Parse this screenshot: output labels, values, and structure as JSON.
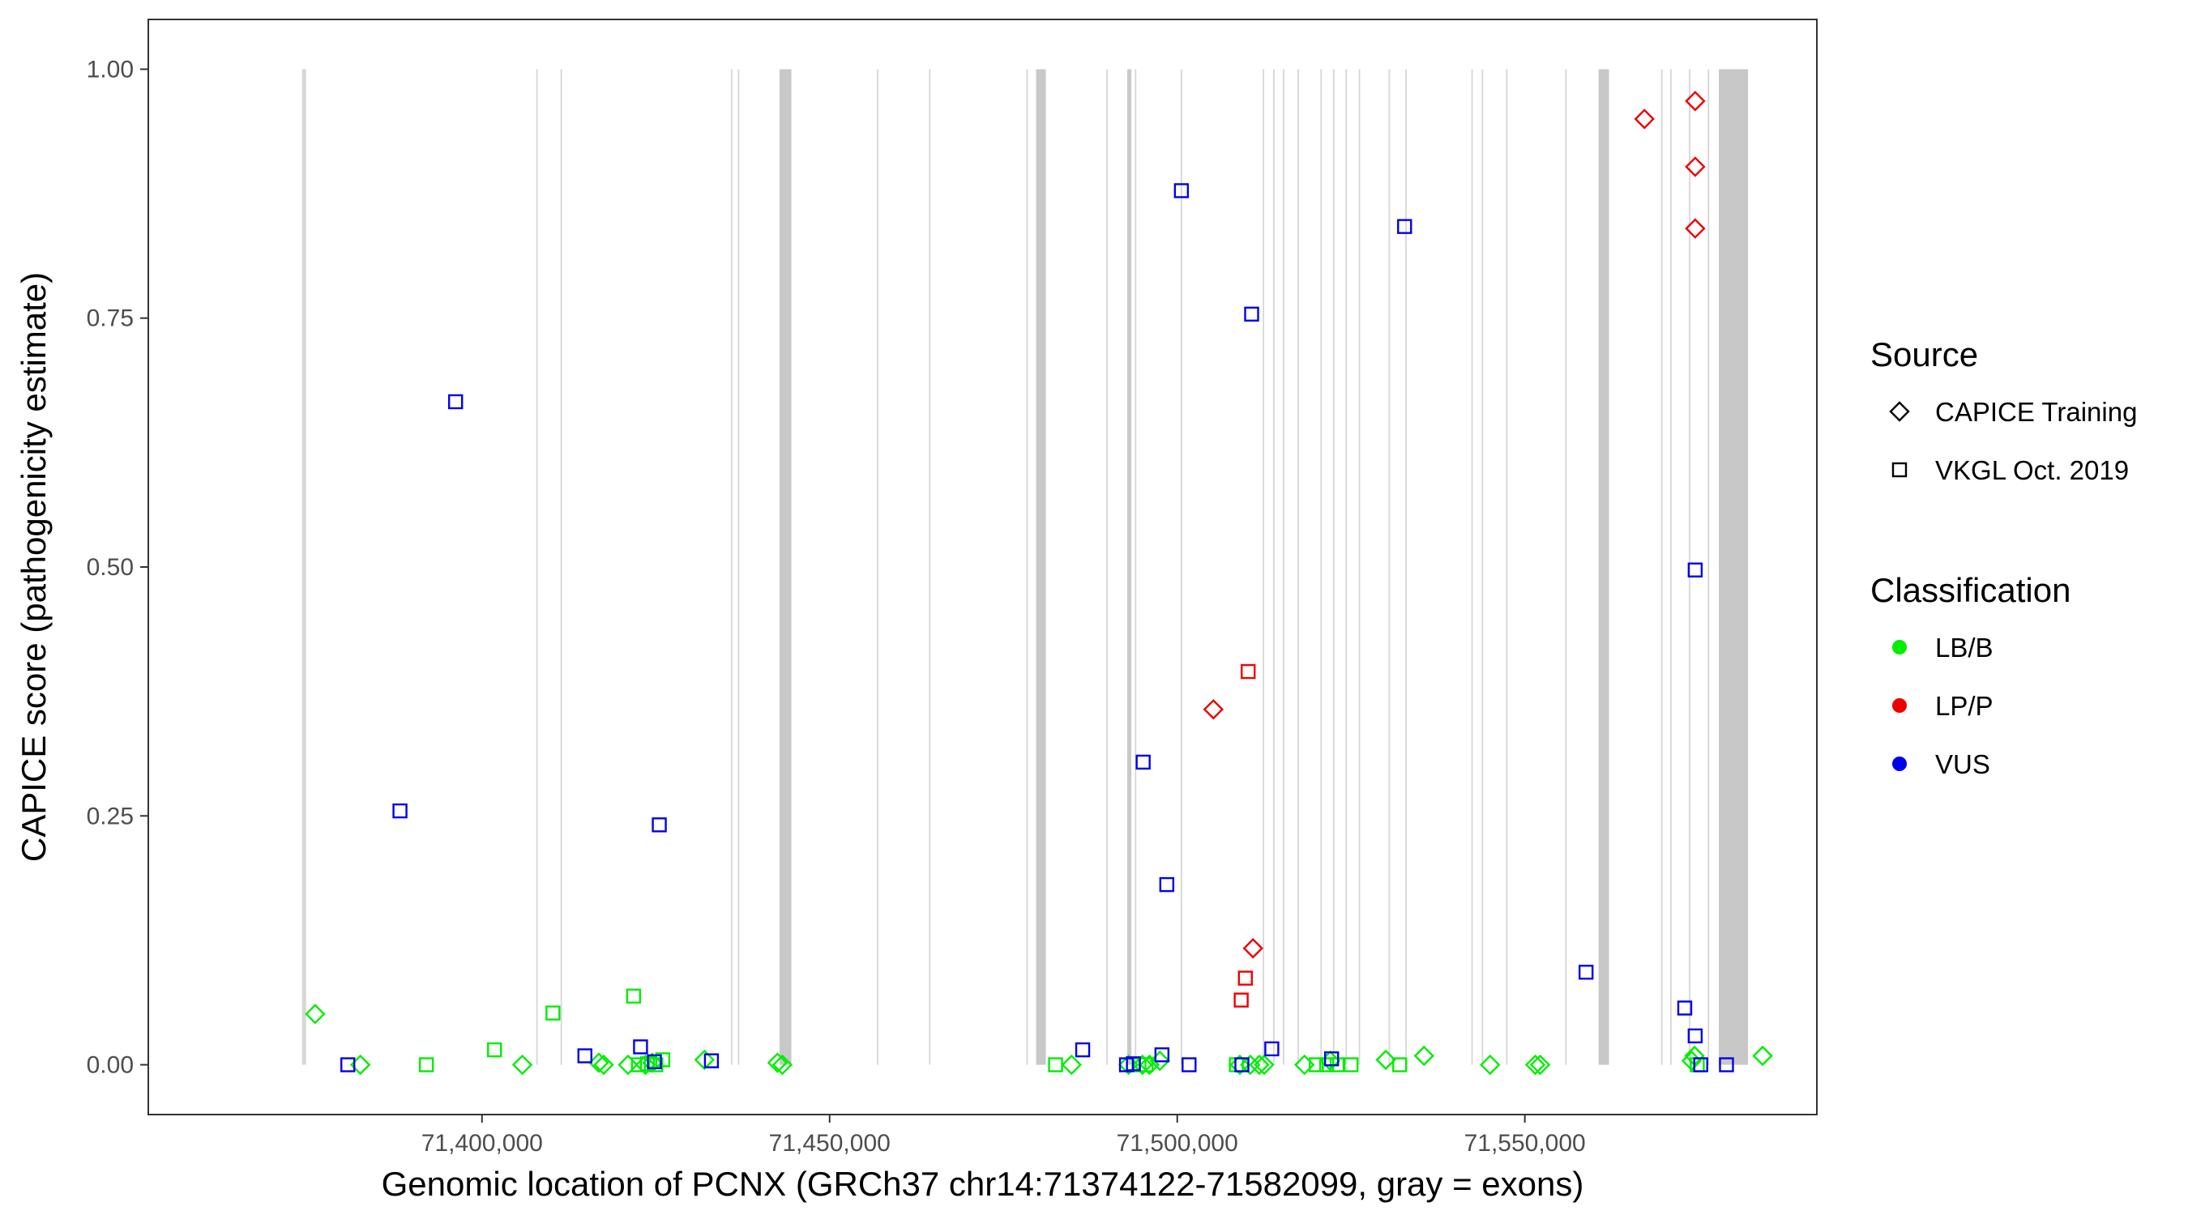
{
  "chart_data": {
    "type": "scatter",
    "title": "",
    "xlabel": "Genomic location of PCNX (GRCh37 chr14:71374122-71582099, gray = exons)",
    "ylabel": "CAPICE score (pathogenicity estimate)",
    "xlim": [
      71352000,
      71592000
    ],
    "ylim": [
      -0.05,
      1.05
    ],
    "x_ticks": [
      71400000,
      71450000,
      71500000,
      71550000
    ],
    "x_tick_labels": [
      "71,400,000",
      "71,450,000",
      "71,500,000",
      "71,550,000"
    ],
    "y_ticks": [
      0,
      0.25,
      0.5,
      0.75,
      1.0
    ],
    "y_tick_labels": [
      "0.00",
      "0.25",
      "0.50",
      "0.75",
      "1.00"
    ],
    "grid": false,
    "legend_position": "right",
    "exons": [
      [
        71374122,
        71374700
      ],
      [
        71407800,
        71407950
      ],
      [
        71411300,
        71411450
      ],
      [
        71435800,
        71435950
      ],
      [
        71436800,
        71436950
      ],
      [
        71442800,
        71444500
      ],
      [
        71456800,
        71456950
      ],
      [
        71464300,
        71464450
      ],
      [
        71478300,
        71478450
      ],
      [
        71479700,
        71481100
      ],
      [
        71492800,
        71493400
      ],
      [
        71493900,
        71494050
      ],
      [
        71489800,
        71489950
      ],
      [
        71500500,
        71500650
      ],
      [
        71512300,
        71512450
      ],
      [
        71513800,
        71513950
      ],
      [
        71515200,
        71515350
      ],
      [
        71517300,
        71517450
      ],
      [
        71520600,
        71520750
      ],
      [
        71522400,
        71522550
      ],
      [
        71524200,
        71524350
      ],
      [
        71526100,
        71526250
      ],
      [
        71530400,
        71530550
      ],
      [
        71532800,
        71532950
      ],
      [
        71542300,
        71542450
      ],
      [
        71543800,
        71543950
      ],
      [
        71547300,
        71547450
      ],
      [
        71555800,
        71555950
      ],
      [
        71560600,
        71562100
      ],
      [
        71569600,
        71569750
      ],
      [
        71570900,
        71571050
      ],
      [
        71573600,
        71573750
      ],
      [
        71576300,
        71576450
      ],
      [
        71577900,
        71582099
      ]
    ],
    "legend": {
      "source_title": "Source",
      "source_items": [
        {
          "label": "CAPICE Training",
          "shape": "diamond"
        },
        {
          "label": "VKGL Oct. 2019",
          "shape": "square"
        }
      ],
      "class_title": "Classification",
      "class_items": [
        {
          "label": "LB/B",
          "color": "#00ee00"
        },
        {
          "label": "LP/P",
          "color": "#ee0000"
        },
        {
          "label": "VUS",
          "color": "#0000ee"
        }
      ]
    },
    "series": [
      {
        "classification": "LB/B",
        "source": "CAPICE Training",
        "color": "#00ee00",
        "shape": "diamond",
        "points": [
          [
            71376000,
            0.051
          ],
          [
            71382500,
            0.0
          ],
          [
            71405800,
            0.0
          ],
          [
            71416800,
            0.002
          ],
          [
            71417500,
            0.0
          ],
          [
            71421000,
            0.0
          ],
          [
            71423500,
            0.0
          ],
          [
            71424500,
            0.002
          ],
          [
            71432000,
            0.005
          ],
          [
            71442500,
            0.002
          ],
          [
            71443200,
            0.0
          ],
          [
            71484800,
            0.0
          ],
          [
            71493000,
            0.0
          ],
          [
            71495000,
            0.0
          ],
          [
            71496000,
            0.0
          ],
          [
            71497500,
            0.004
          ],
          [
            71509000,
            0.0
          ],
          [
            71510500,
            0.0
          ],
          [
            71511800,
            0.0
          ],
          [
            71512500,
            0.0
          ],
          [
            71518300,
            0.0
          ],
          [
            71522000,
            0.004
          ],
          [
            71530000,
            0.005
          ],
          [
            71535500,
            0.009
          ],
          [
            71545000,
            0.0
          ],
          [
            71551500,
            0.0
          ],
          [
            71552200,
            0.0
          ],
          [
            71574000,
            0.004
          ],
          [
            71574400,
            0.009
          ],
          [
            71584200,
            0.009
          ]
        ]
      },
      {
        "classification": "LB/B",
        "source": "VKGL Oct. 2019",
        "color": "#00ee00",
        "shape": "square",
        "points": [
          [
            71392000,
            0.0
          ],
          [
            71401800,
            0.015
          ],
          [
            71410200,
            0.052
          ],
          [
            71421800,
            0.069
          ],
          [
            71422500,
            0.0
          ],
          [
            71423800,
            0.001
          ],
          [
            71425000,
            0.0
          ],
          [
            71426000,
            0.005
          ],
          [
            71482500,
            0.0
          ],
          [
            71494500,
            0.0
          ],
          [
            71495500,
            0.0
          ],
          [
            71508500,
            0.0
          ],
          [
            71520000,
            0.0
          ],
          [
            71521500,
            0.0
          ],
          [
            71523000,
            0.0
          ],
          [
            71525000,
            0.0
          ],
          [
            71532000,
            0.0
          ],
          [
            71574800,
            0.0
          ]
        ]
      },
      {
        "classification": "LP/P",
        "source": "CAPICE Training",
        "color": "#ee0000",
        "shape": "diamond",
        "points": [
          [
            71505200,
            0.357
          ],
          [
            71510900,
            0.117
          ],
          [
            71567200,
            0.95
          ],
          [
            71574500,
            0.968
          ],
          [
            71574500,
            0.902
          ],
          [
            71574500,
            0.84
          ]
        ]
      },
      {
        "classification": "LP/P",
        "source": "VKGL Oct. 2019",
        "color": "#ee0000",
        "shape": "square",
        "points": [
          [
            71510200,
            0.395
          ],
          [
            71509800,
            0.087
          ],
          [
            71509200,
            0.065
          ]
        ]
      },
      {
        "classification": "VUS",
        "source": "CAPICE Training",
        "color": "#0000ee",
        "shape": "diamond",
        "points": []
      },
      {
        "classification": "VUS",
        "source": "VKGL Oct. 2019",
        "color": "#0000ee",
        "shape": "square",
        "points": [
          [
            71380700,
            0.0
          ],
          [
            71388200,
            0.255
          ],
          [
            71396200,
            0.666
          ],
          [
            71414800,
            0.009
          ],
          [
            71422800,
            0.018
          ],
          [
            71424800,
            0.003
          ],
          [
            71425500,
            0.241
          ],
          [
            71433000,
            0.004
          ],
          [
            71486400,
            0.015
          ],
          [
            71492700,
            0.0
          ],
          [
            71493700,
            0.001
          ],
          [
            71495100,
            0.304
          ],
          [
            71497800,
            0.01
          ],
          [
            71498500,
            0.181
          ],
          [
            71500600,
            0.878
          ],
          [
            71501700,
            0.0
          ],
          [
            71509300,
            0.0
          ],
          [
            71510700,
            0.754
          ],
          [
            71513600,
            0.016
          ],
          [
            71522200,
            0.006
          ],
          [
            71532700,
            0.842
          ],
          [
            71558800,
            0.093
          ],
          [
            71573000,
            0.057
          ],
          [
            71574500,
            0.497
          ],
          [
            71574500,
            0.029
          ],
          [
            71575300,
            0.0
          ],
          [
            71579000,
            0.0
          ]
        ]
      }
    ]
  }
}
